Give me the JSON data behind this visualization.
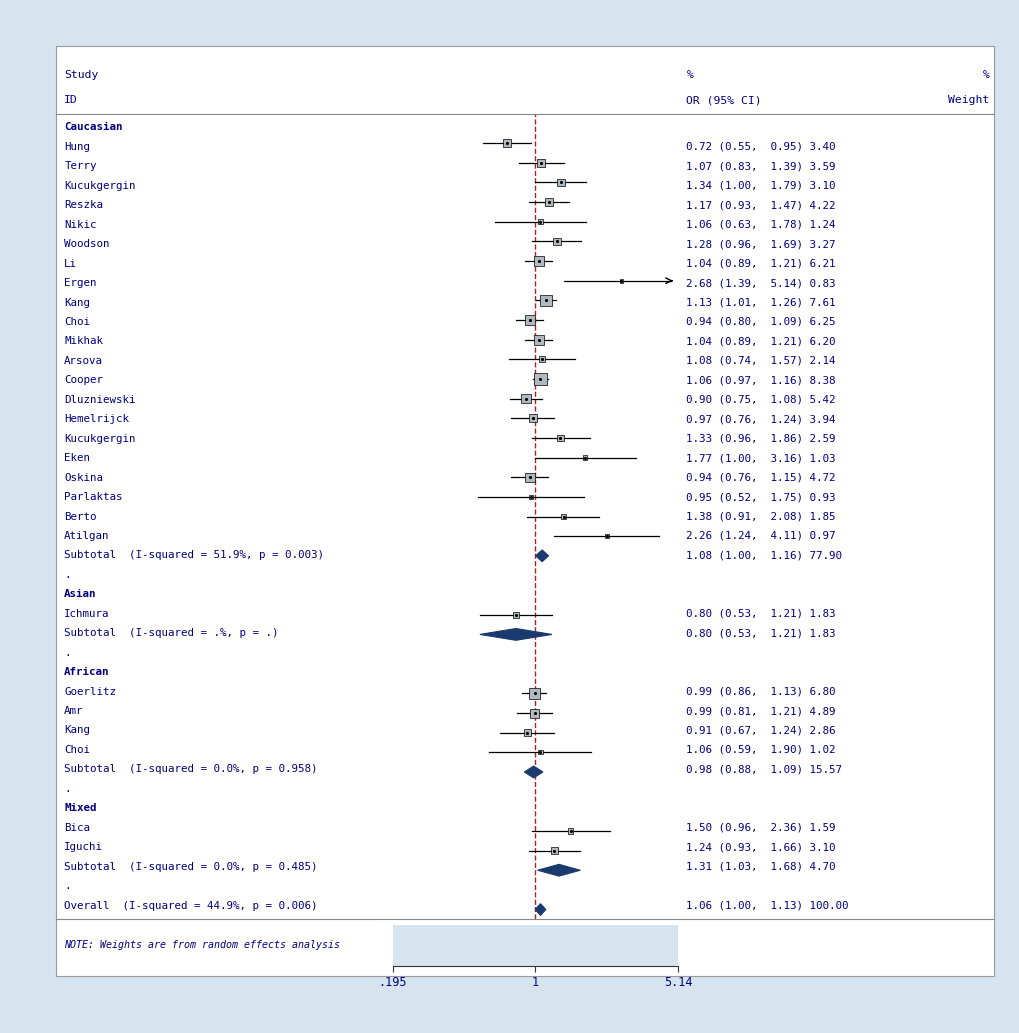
{
  "background_color": "#d6e4f0",
  "plot_bg": "#ffffff",
  "x_min": 0.195,
  "x_max": 5.14,
  "ref_line": 1.0,
  "studies": [
    {
      "label": "Caucasian",
      "or": null,
      "ci_low": null,
      "ci_high": null,
      "weight": null,
      "type": "subgroup"
    },
    {
      "label": "Hung",
      "or": 0.72,
      "ci_low": 0.55,
      "ci_high": 0.95,
      "weight": 3.4,
      "type": "study"
    },
    {
      "label": "Terry",
      "or": 1.07,
      "ci_low": 0.83,
      "ci_high": 1.39,
      "weight": 3.59,
      "type": "study"
    },
    {
      "label": "Kucukgergin",
      "or": 1.34,
      "ci_low": 1.0,
      "ci_high": 1.79,
      "weight": 3.1,
      "type": "study"
    },
    {
      "label": "Reszka",
      "or": 1.17,
      "ci_low": 0.93,
      "ci_high": 1.47,
      "weight": 4.22,
      "type": "study"
    },
    {
      "label": "Nikic",
      "or": 1.06,
      "ci_low": 0.63,
      "ci_high": 1.78,
      "weight": 1.24,
      "type": "study"
    },
    {
      "label": "Woodson",
      "or": 1.28,
      "ci_low": 0.96,
      "ci_high": 1.69,
      "weight": 3.27,
      "type": "study"
    },
    {
      "label": "Li",
      "or": 1.04,
      "ci_low": 0.89,
      "ci_high": 1.21,
      "weight": 6.21,
      "type": "study"
    },
    {
      "label": "Ergen",
      "or": 2.68,
      "ci_low": 1.39,
      "ci_high": 5.14,
      "weight": 0.83,
      "type": "study",
      "arrow": true
    },
    {
      "label": "Kang",
      "or": 1.13,
      "ci_low": 1.01,
      "ci_high": 1.26,
      "weight": 7.61,
      "type": "study"
    },
    {
      "label": "Choi",
      "or": 0.94,
      "ci_low": 0.8,
      "ci_high": 1.09,
      "weight": 6.25,
      "type": "study"
    },
    {
      "label": "Mikhak",
      "or": 1.04,
      "ci_low": 0.89,
      "ci_high": 1.21,
      "weight": 6.2,
      "type": "study"
    },
    {
      "label": "Arsova",
      "or": 1.08,
      "ci_low": 0.74,
      "ci_high": 1.57,
      "weight": 2.14,
      "type": "study"
    },
    {
      "label": "Cooper",
      "or": 1.06,
      "ci_low": 0.97,
      "ci_high": 1.16,
      "weight": 8.38,
      "type": "study"
    },
    {
      "label": "Dluzniewski",
      "or": 0.9,
      "ci_low": 0.75,
      "ci_high": 1.08,
      "weight": 5.42,
      "type": "study"
    },
    {
      "label": "Hemelrijck",
      "or": 0.97,
      "ci_low": 0.76,
      "ci_high": 1.24,
      "weight": 3.94,
      "type": "study"
    },
    {
      "label": "Kucukgergin",
      "or": 1.33,
      "ci_low": 0.96,
      "ci_high": 1.86,
      "weight": 2.59,
      "type": "study"
    },
    {
      "label": "Eken",
      "or": 1.77,
      "ci_low": 1.0,
      "ci_high": 3.16,
      "weight": 1.03,
      "type": "study"
    },
    {
      "label": "Oskina",
      "or": 0.94,
      "ci_low": 0.76,
      "ci_high": 1.15,
      "weight": 4.72,
      "type": "study"
    },
    {
      "label": "Parlaktas",
      "or": 0.95,
      "ci_low": 0.52,
      "ci_high": 1.75,
      "weight": 0.93,
      "type": "study"
    },
    {
      "label": "Berto",
      "or": 1.38,
      "ci_low": 0.91,
      "ci_high": 2.08,
      "weight": 1.85,
      "type": "study"
    },
    {
      "label": "Atilgan",
      "or": 2.26,
      "ci_low": 1.24,
      "ci_high": 4.11,
      "weight": 0.97,
      "type": "study"
    },
    {
      "label": "Subtotal  (I-squared = 51.9%, p = 0.003)",
      "or": 1.08,
      "ci_low": 1.0,
      "ci_high": 1.16,
      "weight": 77.9,
      "type": "subtotal"
    },
    {
      "label": ".",
      "or": null,
      "ci_low": null,
      "ci_high": null,
      "weight": null,
      "type": "blank"
    },
    {
      "label": "Asian",
      "or": null,
      "ci_low": null,
      "ci_high": null,
      "weight": null,
      "type": "subgroup"
    },
    {
      "label": "Ichmura",
      "or": 0.8,
      "ci_low": 0.53,
      "ci_high": 1.21,
      "weight": 1.83,
      "type": "study"
    },
    {
      "label": "Subtotal  (I-squared = .%, p = .)",
      "or": 0.8,
      "ci_low": 0.53,
      "ci_high": 1.21,
      "weight": 1.83,
      "type": "subtotal"
    },
    {
      "label": ".",
      "or": null,
      "ci_low": null,
      "ci_high": null,
      "weight": null,
      "type": "blank"
    },
    {
      "label": "African",
      "or": null,
      "ci_low": null,
      "ci_high": null,
      "weight": null,
      "type": "subgroup"
    },
    {
      "label": "Goerlitz",
      "or": 0.99,
      "ci_low": 0.86,
      "ci_high": 1.13,
      "weight": 6.8,
      "type": "study"
    },
    {
      "label": "Amr",
      "or": 0.99,
      "ci_low": 0.81,
      "ci_high": 1.21,
      "weight": 4.89,
      "type": "study"
    },
    {
      "label": "Kang",
      "or": 0.91,
      "ci_low": 0.67,
      "ci_high": 1.24,
      "weight": 2.86,
      "type": "study"
    },
    {
      "label": "Choi",
      "or": 1.06,
      "ci_low": 0.59,
      "ci_high": 1.9,
      "weight": 1.02,
      "type": "study"
    },
    {
      "label": "Subtotal  (I-squared = 0.0%, p = 0.958)",
      "or": 0.98,
      "ci_low": 0.88,
      "ci_high": 1.09,
      "weight": 15.57,
      "type": "subtotal"
    },
    {
      "label": ".",
      "or": null,
      "ci_low": null,
      "ci_high": null,
      "weight": null,
      "type": "blank"
    },
    {
      "label": "Mixed",
      "or": null,
      "ci_low": null,
      "ci_high": null,
      "weight": null,
      "type": "subgroup"
    },
    {
      "label": "Bica",
      "or": 1.5,
      "ci_low": 0.96,
      "ci_high": 2.36,
      "weight": 1.59,
      "type": "study"
    },
    {
      "label": "Iguchi",
      "or": 1.24,
      "ci_low": 0.93,
      "ci_high": 1.66,
      "weight": 3.1,
      "type": "study"
    },
    {
      "label": "Subtotal  (I-squared = 0.0%, p = 0.485)",
      "or": 1.31,
      "ci_low": 1.03,
      "ci_high": 1.68,
      "weight": 4.7,
      "type": "subtotal"
    },
    {
      "label": ".",
      "or": null,
      "ci_low": null,
      "ci_high": null,
      "weight": null,
      "type": "blank"
    },
    {
      "label": "Overall  (I-squared = 44.9%, p = 0.006)",
      "or": 1.06,
      "ci_low": 1.0,
      "ci_high": 1.13,
      "weight": 100.0,
      "type": "overall"
    }
  ],
  "or_display": [
    null,
    "0.72 (0.55,  0.95) 3.40",
    "1.07 (0.83,  1.39) 3.59",
    "1.34 (1.00,  1.79) 3.10",
    "1.17 (0.93,  1.47) 4.22",
    "1.06 (0.63,  1.78) 1.24",
    "1.28 (0.96,  1.69) 3.27",
    "1.04 (0.89,  1.21) 6.21",
    "2.68 (1.39,  5.14) 0.83",
    "1.13 (1.01,  1.26) 7.61",
    "0.94 (0.80,  1.09) 6.25",
    "1.04 (0.89,  1.21) 6.20",
    "1.08 (0.74,  1.57) 2.14",
    "1.06 (0.97,  1.16) 8.38",
    "0.90 (0.75,  1.08) 5.42",
    "0.97 (0.76,  1.24) 3.94",
    "1.33 (0.96,  1.86) 2.59",
    "1.77 (1.00,  3.16) 1.03",
    "0.94 (0.76,  1.15) 4.72",
    "0.95 (0.52,  1.75) 0.93",
    "1.38 (0.91,  2.08) 1.85",
    "2.26 (1.24,  4.11) 0.97",
    "1.08 (1.00,  1.16) 77.90",
    null,
    null,
    "0.80 (0.53,  1.21) 1.83",
    "0.80 (0.53,  1.21) 1.83",
    null,
    null,
    "0.99 (0.86,  1.13) 6.80",
    "0.99 (0.81,  1.21) 4.89",
    "0.91 (0.67,  1.24) 2.86",
    "1.06 (0.59,  1.90) 1.02",
    "0.98 (0.88,  1.09) 15.57",
    null,
    null,
    "1.50 (0.96,  2.36) 1.59",
    "1.24 (0.93,  1.66) 3.10",
    "1.31 (1.03,  1.68) 4.70",
    null,
    "1.06 (1.00,  1.13) 100.00"
  ],
  "box_color": "#b0b8c0",
  "diamond_color": "#1a3a6e",
  "diamond_outline": "#1a3a6e",
  "ref_color": "#aa2222",
  "text_color": "#000080",
  "max_weight": 8.38,
  "label_fontsize": 7.8,
  "or_fontsize": 7.8,
  "header_fontsize": 8.2
}
